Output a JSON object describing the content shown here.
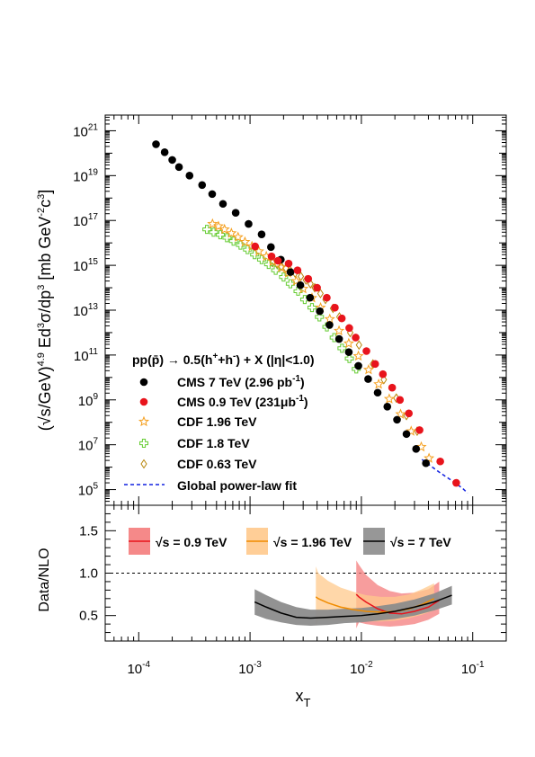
{
  "chart_data": [
    {
      "type": "scatter",
      "panel": "top",
      "xlabel": "x_T",
      "ylabel": "(√s/GeV)^4.9 Ed^3σ/dp^3 [mb GeV^-2 c^3]",
      "x_scale": "log",
      "y_scale": "log",
      "xlim": [
        5e-05,
        0.2
      ],
      "ylim": [
        20000,
        5e+21
      ],
      "x_ticks": [
        "10-4",
        "10-3",
        "10-2",
        "10-1"
      ],
      "y_ticks": [
        "1021",
        "1019",
        "1017",
        "1015",
        "1013",
        "1011",
        "109",
        "107",
        "105"
      ],
      "legend_header": "pp(p̄) → 0.5(h⁺+h⁻) + X (|η|<1.0)",
      "series": [
        {
          "name": "CMS 7 TeV (2.96 pb-1)",
          "label_main": "CMS 7 TeV (2.96 pb",
          "label_sup": "-1",
          "label_tail": ")",
          "marker": "filled-circle",
          "color": "#000000",
          "x": [
            0.000143,
            0.000171,
            0.0002,
            0.00023,
            0.000286,
            0.000371,
            0.000457,
            0.000571,
            0.000743,
            0.00097,
            0.00127,
            0.00154,
            0.00189,
            0.00231,
            0.00283,
            0.00346,
            0.00423,
            0.00517,
            0.00631,
            0.00771,
            0.0094,
            0.0115,
            0.014,
            0.0171,
            0.0209,
            0.0254,
            0.031,
            0.038
          ],
          "y": [
            2.5e+20,
            1.1e+20,
            5e+19,
            2.4e+19,
            1e+19,
            3.8e+18,
            1.5e+18,
            5.5e+17,
            2.2e+17,
            7e+16,
            2.4e+16,
            6500000000000000.0,
            1800000000000000.0,
            500000000000000.0,
            130000000000000.0,
            36000000000000.0,
            9000000000000.0,
            2200000000000.0,
            520000000000.0,
            135000000000.0,
            33000000000.0,
            8500000000.0,
            2100000000.0,
            500000000.0,
            130000000.0,
            30000000.0,
            6500000.0,
            1500000.0
          ]
        },
        {
          "name": "CMS 0.9 TeV (231μb-1)",
          "label_main": "CMS 0.9 TeV (231μb",
          "label_sup": "-1",
          "label_tail": ")",
          "marker": "filled-circle",
          "color": "#e8141c",
          "x": [
            0.00111,
            0.00156,
            0.00178,
            0.00222,
            0.00267,
            0.00333,
            0.004,
            0.00489,
            0.00578,
            0.00667,
            0.00778,
            0.00889,
            0.0111,
            0.0133,
            0.0156,
            0.0189,
            0.0222,
            0.0267,
            0.0333,
            0.0511,
            0.0711
          ],
          "y": [
            7000000000000000.0,
            2500000000000000.0,
            1600000000000000.0,
            1200000000000000.0,
            600000000000000.0,
            250000000000000.0,
            100000000000000.0,
            36000000000000.0,
            13000000000000.0,
            4300000000000.0,
            1600000000000.0,
            600000000000.0,
            150000000000.0,
            40000000000.0,
            14000000000.0,
            3500000000.0,
            1000000000.0,
            250000000.0,
            45000000.0,
            1800000.0,
            200000.0
          ]
        },
        {
          "name": "CDF 1.96 TeV",
          "marker": "open-star",
          "color": "#f5a020",
          "x": [
            0.00046,
            0.00052,
            0.00059,
            0.00068,
            0.00078,
            0.0009,
            0.00104,
            0.0012,
            0.0014,
            0.0016,
            0.0019,
            0.0022,
            0.0026,
            0.003,
            0.0036,
            0.0043,
            0.0052,
            0.0063,
            0.0077,
            0.0094,
            0.0116,
            0.0143,
            0.0178,
            0.0225,
            0.028,
            0.0345,
            0.0405
          ],
          "y": [
            7e+16,
            5.5e+16,
            4e+16,
            2.7e+16,
            1.8e+16,
            1.1e+16,
            7000000000000000.0,
            4200000000000000.0,
            2500000000000000.0,
            1500000000000000.0,
            800000000000000.0,
            450000000000000.0,
            200000000000000.0,
            90000000000000.0,
            35000000000000.0,
            13000000000000.0,
            4000000000000.0,
            1200000000000.0,
            330000000000.0,
            90000000000.0,
            22000000000.0,
            5000000000.0,
            1100000000.0,
            230000000.0,
            40000000.0,
            8000000.0,
            2500000.0
          ]
        },
        {
          "name": "CDF 1.8 TeV",
          "marker": "open-cross",
          "color": "#66cc33",
          "x": [
            0.00041,
            0.00047,
            0.00054,
            0.00062,
            0.00071,
            0.00082,
            0.00095,
            0.0011,
            0.00127,
            0.00147,
            0.0017,
            0.002,
            0.0023,
            0.0027,
            0.0031,
            0.0036,
            0.0042,
            0.0049,
            0.0057,
            0.0067,
            0.0078,
            0.009
          ],
          "y": [
            4e+16,
            3e+16,
            2.3e+16,
            1.7e+16,
            1.2e+16,
            8000000000000000.0,
            5000000000000000.0,
            3000000000000000.0,
            1800000000000000.0,
            1100000000000000.0,
            600000000000000.0,
            300000000000000.0,
            150000000000000.0,
            70000000000000.0,
            30000000000000.0,
            13000000000000.0,
            5000000000000.0,
            1800000000000.0,
            600000000000.0,
            200000000000.0,
            70000000000.0,
            24000000000.0
          ]
        },
        {
          "name": "CDF 0.63 TeV",
          "marker": "open-diamond",
          "color": "#b8860b",
          "x": [
            0.00159,
            0.00175,
            0.00191,
            0.0021,
            0.00229,
            0.00254,
            0.00286,
            0.00318,
            0.00349,
            0.00381,
            0.00429,
            0.00476,
            0.00556,
            0.00635,
            0.00794,
            0.00952,
            0.0127,
            0.0159,
            0.0206,
            0.0254,
            0.0317
          ],
          "y": [
            1300000000000000.0,
            1100000000000000.0,
            900000000000000.0,
            750000000000000.0,
            600000000000000.0,
            450000000000000.0,
            320000000000000.0,
            220000000000000.0,
            150000000000000.0,
            100000000000000.0,
            55000000000000.0,
            30000000000000.0,
            12000000000000.0,
            5000000000000.0,
            1000000000000.0,
            280000000000.0,
            40000000000.0,
            8000000000.0,
            1200000000.0,
            200000000.0,
            40000000.0
          ]
        },
        {
          "name": "Global power-law fit",
          "marker": "dashed-line",
          "color": "#1020e0",
          "x": [
            0.035,
            0.05,
            0.065,
            0.08,
            0.09
          ],
          "y": [
            2200000.0,
            600000.0,
            250000.0,
            120000.0,
            70000.0
          ]
        }
      ]
    },
    {
      "type": "area",
      "panel": "bottom",
      "xlabel": "x_T",
      "ylabel": "Data/NLO",
      "x_scale": "log",
      "xlim": [
        5e-05,
        0.2
      ],
      "ylim": [
        0.2,
        1.8
      ],
      "y_ticks": [
        "0.5",
        "1.0",
        "1.5"
      ],
      "reference_line": 1.0,
      "series": [
        {
          "name": "√s = 0.9 TeV",
          "color": "#e8141c",
          "band_color": "#f47c7c",
          "x": [
            0.009,
            0.0095,
            0.011,
            0.014,
            0.018,
            0.023,
            0.03,
            0.04,
            0.05
          ],
          "central": [
            0.75,
            0.72,
            0.66,
            0.58,
            0.53,
            0.52,
            0.55,
            0.6,
            0.68
          ],
          "low": [
            0.35,
            0.42,
            0.4,
            0.38,
            0.37,
            0.38,
            0.4,
            0.45,
            0.52
          ],
          "high": [
            1.15,
            1.1,
            0.98,
            0.86,
            0.79,
            0.76,
            0.77,
            0.81,
            0.9
          ]
        },
        {
          "name": "√s = 1.96 TeV",
          "color": "#f08c00",
          "band_color": "#ffc98c",
          "x": [
            0.0039,
            0.0041,
            0.005,
            0.0065,
            0.0085,
            0.011,
            0.015,
            0.02,
            0.027,
            0.035,
            0.045
          ],
          "central": [
            0.72,
            0.7,
            0.65,
            0.6,
            0.57,
            0.55,
            0.54,
            0.55,
            0.58,
            0.63,
            0.7
          ],
          "low": [
            0.38,
            0.45,
            0.45,
            0.44,
            0.44,
            0.43,
            0.43,
            0.44,
            0.47,
            0.51,
            0.56
          ],
          "high": [
            1.08,
            1.0,
            0.91,
            0.83,
            0.78,
            0.74,
            0.72,
            0.72,
            0.75,
            0.81,
            0.88
          ]
        },
        {
          "name": "√s = 7 TeV",
          "color": "#000000",
          "band_color": "#8c8c8c",
          "x": [
            0.0011,
            0.0014,
            0.0019,
            0.0026,
            0.0035,
            0.005,
            0.007,
            0.01,
            0.014,
            0.02,
            0.03,
            0.045,
            0.065
          ],
          "central": [
            0.66,
            0.6,
            0.53,
            0.48,
            0.47,
            0.48,
            0.49,
            0.5,
            0.52,
            0.55,
            0.6,
            0.66,
            0.74
          ],
          "low": [
            0.51,
            0.46,
            0.42,
            0.39,
            0.38,
            0.39,
            0.41,
            0.42,
            0.44,
            0.46,
            0.5,
            0.56,
            0.63
          ],
          "high": [
            0.81,
            0.74,
            0.66,
            0.6,
            0.57,
            0.57,
            0.58,
            0.59,
            0.61,
            0.64,
            0.69,
            0.76,
            0.85
          ]
        }
      ]
    }
  ],
  "text": {
    "x_axis_main": "x",
    "x_axis_sub": "T",
    "ratio_ylabel": "Data/NLO",
    "legend_header_main": "pp(p̄) → 0.5(h",
    "legend_header_plus": "+",
    "legend_header_mid": "+h",
    "legend_header_minus": "-",
    "legend_header_tail": ") + X (|η|<1.0)",
    "bottom_legend_prefix": "√s = ",
    "bottom_legend": [
      "0.9 TeV",
      "1.96 TeV",
      "7 TeV"
    ],
    "x_tick_base": "10",
    "x_tick_exps": [
      "-4",
      "-3",
      "-2",
      "-1"
    ],
    "y_tick_base": "10",
    "y_tick_exps": [
      "21",
      "19",
      "17",
      "15",
      "13",
      "11",
      "9",
      "7",
      "5"
    ]
  }
}
